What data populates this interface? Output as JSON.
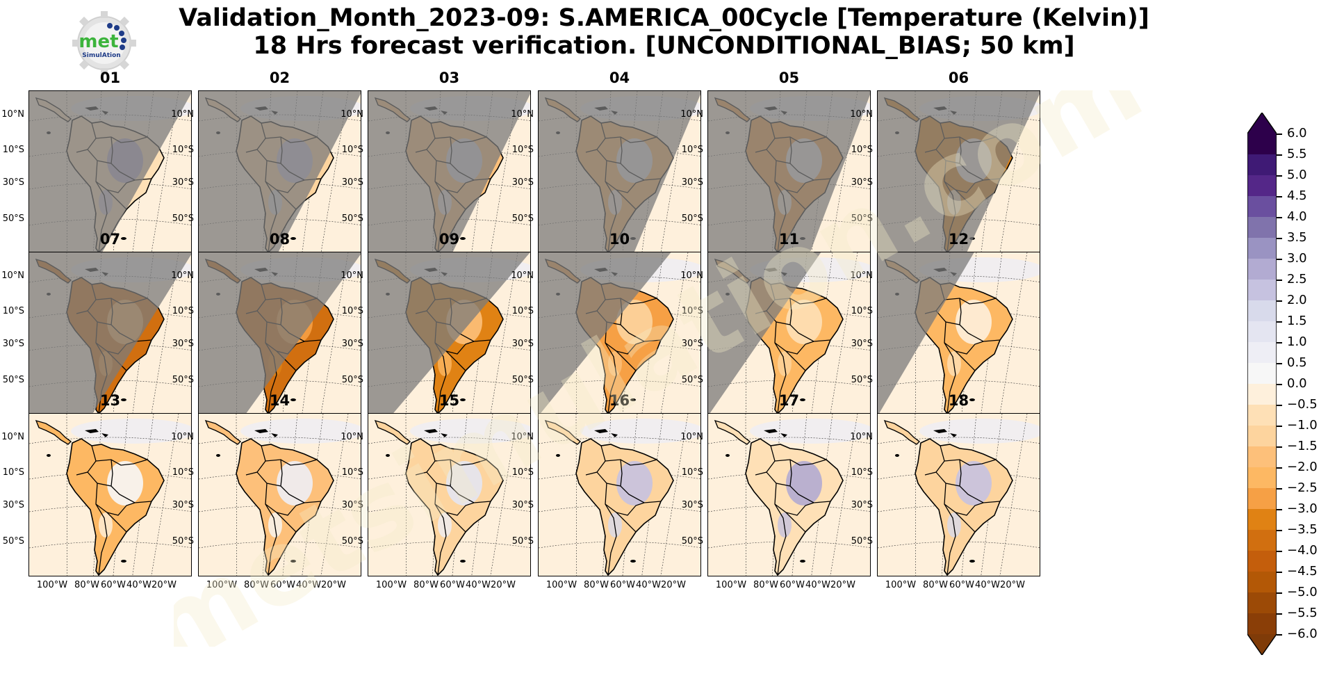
{
  "title": {
    "line1": "Validation_Month_2023-09: S.AMERICA_00Cycle [Temperature (Kelvin)]",
    "line2": "18 Hrs forecast verification. [UNCONDITIONAL_BIAS; 50 km]"
  },
  "logo": {
    "text_main": "met",
    "text_sub": "SimulAtion"
  },
  "watermark_text": "metsimulation.com",
  "lat_ticks": [
    "10°N",
    "10°S",
    "30°S",
    "50°S"
  ],
  "lon_ticks": [
    "100°W",
    "80°W",
    "60°W",
    "40°W",
    "20°W"
  ],
  "colorbar": {
    "ticks": [
      "6.0",
      "5.5",
      "5.0",
      "4.5",
      "4.0",
      "3.5",
      "3.0",
      "2.5",
      "2.0",
      "1.5",
      "1.0",
      "0.5",
      "0.0",
      "−0.5",
      "−1.0",
      "−1.5",
      "−2.0",
      "−2.5",
      "−3.0",
      "−3.5",
      "−4.0",
      "−4.5",
      "−5.0",
      "−5.5",
      "−6.0"
    ],
    "colors": [
      "#2d004b",
      "#3f1a75",
      "#542788",
      "#6a4f9f",
      "#8073ac",
      "#9a93c2",
      "#b2abd2",
      "#c6c2e0",
      "#d8daeb",
      "#e4e5f1",
      "#eeeef5",
      "#f7f7f7",
      "#fef0dc",
      "#fee0b6",
      "#fdd49e",
      "#fdc07a",
      "#fdb863",
      "#f6a045",
      "#e08214",
      "#d16f10",
      "#c45e0c",
      "#b35806",
      "#9c4a06",
      "#8a3e07"
    ],
    "extend_min_color": "#7f3b08",
    "extend_max_color": "#2d004b",
    "min": -6.0,
    "max": 6.0,
    "step": 0.5
  },
  "colors": {
    "night_shade": "#7b7b7b",
    "land_border": "#000000"
  },
  "panels": [
    {
      "label": "01",
      "night_fraction": 0.78,
      "land_bias": -0.8,
      "interior_bias": 3.0
    },
    {
      "label": "02",
      "night_fraction": 0.82,
      "land_bias": -1.0,
      "interior_bias": 2.5
    },
    {
      "label": "03",
      "night_fraction": 0.85,
      "land_bias": -1.5,
      "interior_bias": 2.0
    },
    {
      "label": "04",
      "night_fraction": 0.92,
      "land_bias": -2.0,
      "interior_bias": 1.5
    },
    {
      "label": "05",
      "night_fraction": 0.96,
      "land_bias": -2.5,
      "interior_bias": 1.0
    },
    {
      "label": "06",
      "night_fraction": 0.88,
      "land_bias": -3.0,
      "interior_bias": 0.5
    },
    {
      "label": "07",
      "night_fraction": 0.72,
      "land_bias": -3.5,
      "interior_bias": -2.0
    },
    {
      "label": "08",
      "night_fraction": 0.62,
      "land_bias": -3.5,
      "interior_bias": -2.5
    },
    {
      "label": "09",
      "night_fraction": 0.48,
      "land_bias": -3.0,
      "interior_bias": -1.5
    },
    {
      "label": "10",
      "night_fraction": 0.3,
      "land_bias": -2.5,
      "interior_bias": -1.0
    },
    {
      "label": "11",
      "night_fraction": 0.18,
      "land_bias": -2.0,
      "interior_bias": -0.5
    },
    {
      "label": "12",
      "night_fraction": 0.08,
      "land_bias": -2.0,
      "interior_bias": 0.0
    },
    {
      "label": "13",
      "night_fraction": 0.0,
      "land_bias": -2.0,
      "interior_bias": 0.5
    },
    {
      "label": "14",
      "night_fraction": 0.0,
      "land_bias": -1.5,
      "interior_bias": 1.0
    },
    {
      "label": "15",
      "night_fraction": 0.0,
      "land_bias": -1.0,
      "interior_bias": 1.5
    },
    {
      "label": "16",
      "night_fraction": 0.0,
      "land_bias": -1.0,
      "interior_bias": 2.5
    },
    {
      "label": "17",
      "night_fraction": 0.0,
      "land_bias": -0.5,
      "interior_bias": 3.0
    },
    {
      "label": "18",
      "night_fraction": 0.0,
      "land_bias": -1.0,
      "interior_bias": 2.5
    }
  ]
}
